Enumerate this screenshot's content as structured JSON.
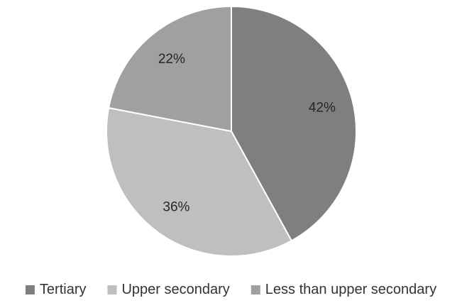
{
  "chart_data": {
    "type": "pie",
    "title": "",
    "slices": [
      {
        "label": "Tertiary",
        "value": 42,
        "display": "42%",
        "color": "#7f7f82"
      },
      {
        "label": "Upper secondary",
        "value": 36,
        "display": "36%",
        "color": "#bfbfc1"
      },
      {
        "label": "Less than upper secondary",
        "value": 22,
        "display": "22%",
        "color": "#a0a0a2"
      }
    ],
    "start_angle_deg": 0,
    "direction": "clockwise",
    "legend_placement": "bottom"
  }
}
